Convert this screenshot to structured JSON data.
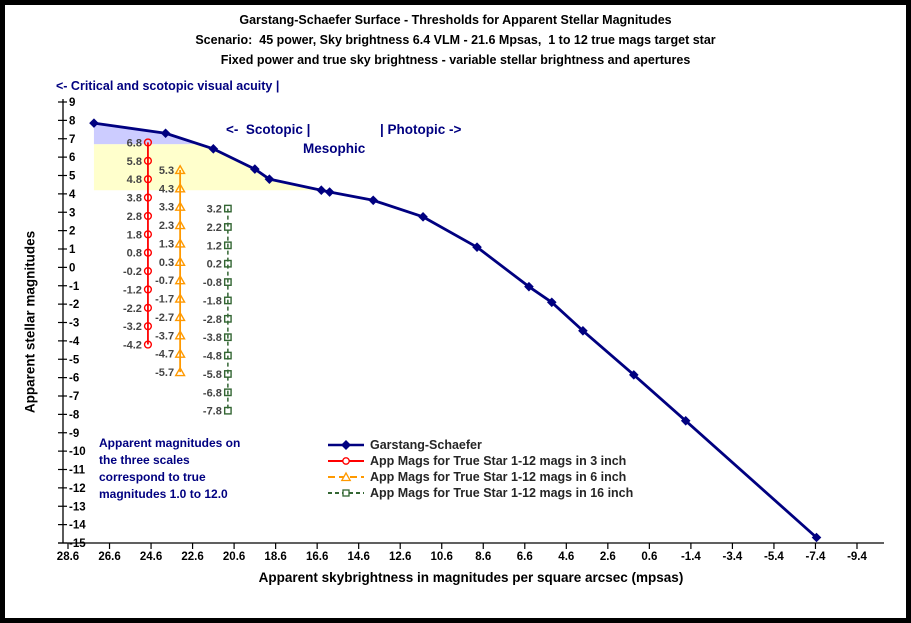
{
  "title": {
    "line1": "Garstang-Schaefer Surface - Thresholds for Apparent Stellar Magnitudes",
    "line2": "Scenario:  45 power, Sky brightness 6.4 VLM - 21.6 Mpsas,  1 to 12 true mags target star",
    "line3": "Fixed power and true sky brightness - variable stellar brightness and apertures"
  },
  "annotations": {
    "acuity": "<- Critical and scotopic visual acuity |",
    "scotopic": "<-  Scotopic |",
    "photopic": "| Photopic ->",
    "mesophic": "Mesophic",
    "note": "Apparent magnitudes on the three scales correspond to true magnitudes 1.0 to 12.0"
  },
  "legend": {
    "items": [
      {
        "label": "Garstang-Schaefer"
      },
      {
        "label": "App Mags for True Star 1-12 mags in 3 inch"
      },
      {
        "label": "App Mags for True Star 1-12 mags in 6 inch"
      },
      {
        "label": "App Mags for True Star 1-12 mags in 16 inch"
      }
    ]
  },
  "colors": {
    "navy": "#000080",
    "red": "#FF0000",
    "orange": "#FF9900",
    "dark_green": "#336633",
    "data_label_gray": "#444444",
    "region_lavender": "#CCCCFF",
    "region_yellow": "#FFFFCC"
  },
  "chart_data": {
    "type": "line",
    "title": "Garstang-Schaefer Surface - Thresholds for Apparent Stellar Magnitudes",
    "subtitle1": "Scenario:  45 power, Sky brightness 6.4 VLM - 21.6 Mpsas,  1 to 12 true mags target star",
    "subtitle2": "Fixed power and true sky brightness - variable stellar brightness and apertures",
    "grid": false,
    "legend_position": "inside-bottom-center",
    "x_axis": {
      "label": "Apparent skybrightness in magnitudes per square arcsec (mpsas)",
      "range": [
        28.6,
        -9.4
      ],
      "reversed": true,
      "tick_step": 2.0,
      "ticks": [
        28.6,
        26.6,
        24.6,
        22.6,
        20.6,
        18.6,
        16.6,
        14.6,
        12.6,
        10.6,
        8.6,
        6.6,
        4.6,
        2.6,
        0.6,
        -1.4,
        -3.4,
        -5.4,
        -7.4,
        -9.4
      ]
    },
    "y_axis": {
      "label": "Apparent stellar magnitudes",
      "range": [
        9,
        -15
      ],
      "tick_step": 1,
      "ticks": [
        9,
        8,
        7,
        6,
        5,
        4,
        3,
        2,
        1,
        0,
        -1,
        -2,
        -3,
        -4,
        -5,
        -6,
        -7,
        -8,
        -9,
        -10,
        -11,
        -12,
        -13,
        -14,
        -15
      ]
    },
    "regions": [
      {
        "name": "region-critical-scotopic-acuity",
        "color": "#CCCCFF",
        "polygon": [
          [
            27.35,
            7.85
          ],
          [
            23.9,
            7.3
          ],
          [
            22.5,
            6.7
          ],
          [
            27.35,
            6.7
          ]
        ]
      },
      {
        "name": "region-scotopic-mesopic",
        "color": "#FFFFCC",
        "polygon": [
          [
            27.35,
            6.7
          ],
          [
            22.5,
            6.7
          ],
          [
            21.6,
            6.45
          ],
          [
            19.6,
            5.35
          ],
          [
            18.9,
            4.8
          ],
          [
            16.4,
            4.2
          ],
          [
            27.35,
            4.2
          ]
        ]
      }
    ],
    "series": [
      {
        "name": "Garstang-Schaefer",
        "color": "#000080",
        "marker": "diamond",
        "line": "solid",
        "width": 2.8,
        "points": [
          [
            27.35,
            7.85
          ],
          [
            23.9,
            7.3
          ],
          [
            21.6,
            6.45
          ],
          [
            19.6,
            5.35
          ],
          [
            18.9,
            4.8
          ],
          [
            16.4,
            4.2
          ],
          [
            16.0,
            4.1
          ],
          [
            13.9,
            3.65
          ],
          [
            11.5,
            2.75
          ],
          [
            8.9,
            1.1
          ],
          [
            6.4,
            -1.05
          ],
          [
            5.3,
            -1.9
          ],
          [
            3.8,
            -3.45
          ],
          [
            1.35,
            -5.85
          ],
          [
            -1.15,
            -8.35
          ],
          [
            -7.45,
            -14.7
          ]
        ]
      },
      {
        "name": "App Mags for True Star 1-12 mags in 3 inch",
        "color": "#FF0000",
        "marker": "circle",
        "line": "solid",
        "width": 1.8,
        "x": 24.75,
        "values": [
          6.8,
          5.8,
          4.8,
          3.8,
          2.8,
          1.8,
          0.8,
          -0.2,
          -1.2,
          -2.2,
          -3.2,
          -4.2
        ],
        "data_labels": true
      },
      {
        "name": "App Mags for True Star 1-12 mags in 6 inch",
        "color": "#FF9900",
        "marker": "triangle",
        "line": "solid",
        "width": 1.8,
        "x": 23.2,
        "values": [
          5.3,
          4.3,
          3.3,
          2.3,
          1.3,
          0.3,
          -0.7,
          -1.7,
          -2.7,
          -3.7,
          -4.7,
          -5.7
        ],
        "data_labels": true
      },
      {
        "name": "App Mags for True Star 1-12 mags in 16 inch",
        "color": "#336633",
        "marker": "square",
        "line": "dashed",
        "width": 1.5,
        "x": 20.9,
        "values": [
          3.2,
          2.2,
          1.2,
          0.2,
          -0.8,
          -1.8,
          -2.8,
          -3.8,
          -4.8,
          -5.8,
          -6.8,
          -7.8
        ],
        "data_labels": true
      }
    ]
  }
}
